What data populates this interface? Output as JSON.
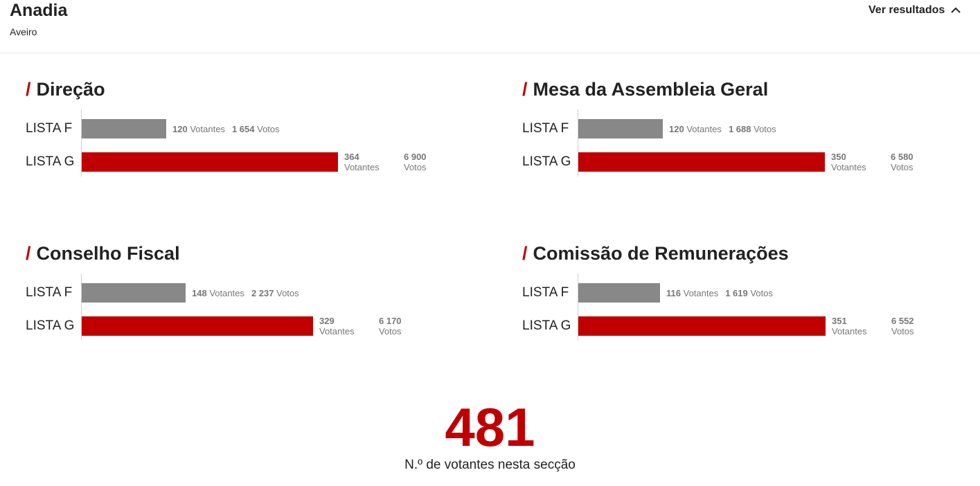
{
  "header": {
    "name": "Anadia",
    "region": "Aveiro",
    "toggle_label": "Ver resultados"
  },
  "colors": {
    "accent": "#c00000",
    "lista_f": "#888888",
    "lista_g": "#c00000"
  },
  "sections": [
    {
      "title": "Direção",
      "rows": [
        {
          "label": "LISTA F",
          "votantes": "120",
          "votantes_label": "Votantes",
          "votos": "1 654",
          "votos_label": "Votos",
          "votantes_value": 120
        },
        {
          "label": "LISTA G",
          "votantes": "364",
          "votantes_label": "Votantes",
          "votos": "6 900",
          "votos_label": "Votos",
          "votantes_value": 364
        }
      ]
    },
    {
      "title": "Mesa da Assembleia Geral",
      "rows": [
        {
          "label": "LISTA F",
          "votantes": "120",
          "votantes_label": "Votantes",
          "votos": "1 688",
          "votos_label": "Votos",
          "votantes_value": 120
        },
        {
          "label": "LISTA G",
          "votantes": "350",
          "votantes_label": "Votantes",
          "votos": "6 580",
          "votos_label": "Votos",
          "votantes_value": 350
        }
      ]
    },
    {
      "title": "Conselho Fiscal",
      "rows": [
        {
          "label": "LISTA F",
          "votantes": "148",
          "votantes_label": "Votantes",
          "votos": "2 237",
          "votos_label": "Votos",
          "votantes_value": 148
        },
        {
          "label": "LISTA G",
          "votantes": "329",
          "votantes_label": "Votantes",
          "votos": "6 170",
          "votos_label": "Votos",
          "votantes_value": 329
        }
      ]
    },
    {
      "title": "Comissão de Remunerações",
      "rows": [
        {
          "label": "LISTA F",
          "votantes": "116",
          "votantes_label": "Votantes",
          "votos": "1 619",
          "votos_label": "Votos",
          "votantes_value": 116
        },
        {
          "label": "LISTA G",
          "votantes": "351",
          "votantes_label": "Votantes",
          "votos": "6 552",
          "votos_label": "Votos",
          "votantes_value": 351
        }
      ]
    }
  ],
  "total": {
    "value": "481",
    "label": "N.º de votantes nesta secção"
  }
}
